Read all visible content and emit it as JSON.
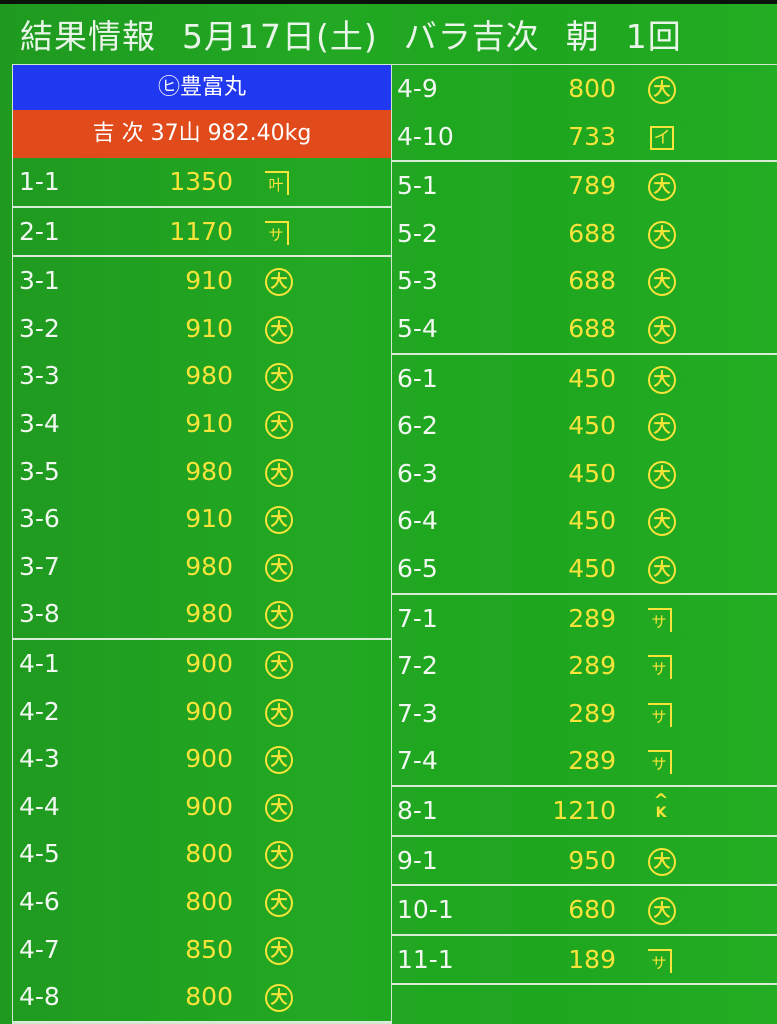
{
  "header": {
    "title": "結果情報",
    "date": "5月17日(土)",
    "category": "バラ吉次",
    "session": "朝",
    "round": "1回"
  },
  "ship": {
    "name": "㋪豊富丸",
    "catch": "吉 次 37山 982.40kg"
  },
  "colors": {
    "background": "#22a822",
    "ship_bar": "#2038ef",
    "catch_bar": "#e14a1a",
    "price": "#f7e43a"
  },
  "left_groups": [
    [
      {
        "lot": "1-1",
        "price": "1350",
        "mark": "叶",
        "type": "roof"
      }
    ],
    [
      {
        "lot": "2-1",
        "price": "1170",
        "mark": "サ",
        "type": "roof"
      }
    ],
    [
      {
        "lot": "3-1",
        "price": "910",
        "mark": "大",
        "type": "dai"
      },
      {
        "lot": "3-2",
        "price": "910",
        "mark": "大",
        "type": "dai"
      },
      {
        "lot": "3-3",
        "price": "980",
        "mark": "大",
        "type": "dai"
      },
      {
        "lot": "3-4",
        "price": "910",
        "mark": "大",
        "type": "dai"
      },
      {
        "lot": "3-5",
        "price": "980",
        "mark": "大",
        "type": "dai"
      },
      {
        "lot": "3-6",
        "price": "910",
        "mark": "大",
        "type": "dai"
      },
      {
        "lot": "3-7",
        "price": "980",
        "mark": "大",
        "type": "dai"
      },
      {
        "lot": "3-8",
        "price": "980",
        "mark": "大",
        "type": "dai"
      }
    ],
    [
      {
        "lot": "4-1",
        "price": "900",
        "mark": "大",
        "type": "dai"
      },
      {
        "lot": "4-2",
        "price": "900",
        "mark": "大",
        "type": "dai"
      },
      {
        "lot": "4-3",
        "price": "900",
        "mark": "大",
        "type": "dai"
      },
      {
        "lot": "4-4",
        "price": "900",
        "mark": "大",
        "type": "dai"
      },
      {
        "lot": "4-5",
        "price": "800",
        "mark": "大",
        "type": "dai"
      },
      {
        "lot": "4-6",
        "price": "800",
        "mark": "大",
        "type": "dai"
      },
      {
        "lot": "4-7",
        "price": "850",
        "mark": "大",
        "type": "dai"
      },
      {
        "lot": "4-8",
        "price": "800",
        "mark": "大",
        "type": "dai"
      }
    ]
  ],
  "right_groups": [
    [
      {
        "lot": "4-9",
        "price": "800",
        "mark": "大",
        "type": "dai"
      },
      {
        "lot": "4-10",
        "price": "733",
        "mark": "イ",
        "type": "box"
      }
    ],
    [
      {
        "lot": "5-1",
        "price": "789",
        "mark": "大",
        "type": "dai"
      },
      {
        "lot": "5-2",
        "price": "688",
        "mark": "大",
        "type": "dai"
      },
      {
        "lot": "5-3",
        "price": "688",
        "mark": "大",
        "type": "dai"
      },
      {
        "lot": "5-4",
        "price": "688",
        "mark": "大",
        "type": "dai"
      }
    ],
    [
      {
        "lot": "6-1",
        "price": "450",
        "mark": "大",
        "type": "dai"
      },
      {
        "lot": "6-2",
        "price": "450",
        "mark": "大",
        "type": "dai"
      },
      {
        "lot": "6-3",
        "price": "450",
        "mark": "大",
        "type": "dai"
      },
      {
        "lot": "6-4",
        "price": "450",
        "mark": "大",
        "type": "dai"
      },
      {
        "lot": "6-5",
        "price": "450",
        "mark": "大",
        "type": "dai"
      }
    ],
    [
      {
        "lot": "7-1",
        "price": "289",
        "mark": "サ",
        "type": "roof"
      },
      {
        "lot": "7-2",
        "price": "289",
        "mark": "サ",
        "type": "roof"
      },
      {
        "lot": "7-3",
        "price": "289",
        "mark": "サ",
        "type": "roof"
      },
      {
        "lot": "7-4",
        "price": "289",
        "mark": "サ",
        "type": "roof"
      }
    ],
    [
      {
        "lot": "8-1",
        "price": "1210",
        "mark": "K",
        "type": "k"
      }
    ],
    [
      {
        "lot": "9-1",
        "price": "950",
        "mark": "大",
        "type": "dai"
      }
    ],
    [
      {
        "lot": "10-1",
        "price": "680",
        "mark": "大",
        "type": "dai"
      }
    ],
    [
      {
        "lot": "11-1",
        "price": "189",
        "mark": "サ",
        "type": "roof"
      }
    ]
  ]
}
